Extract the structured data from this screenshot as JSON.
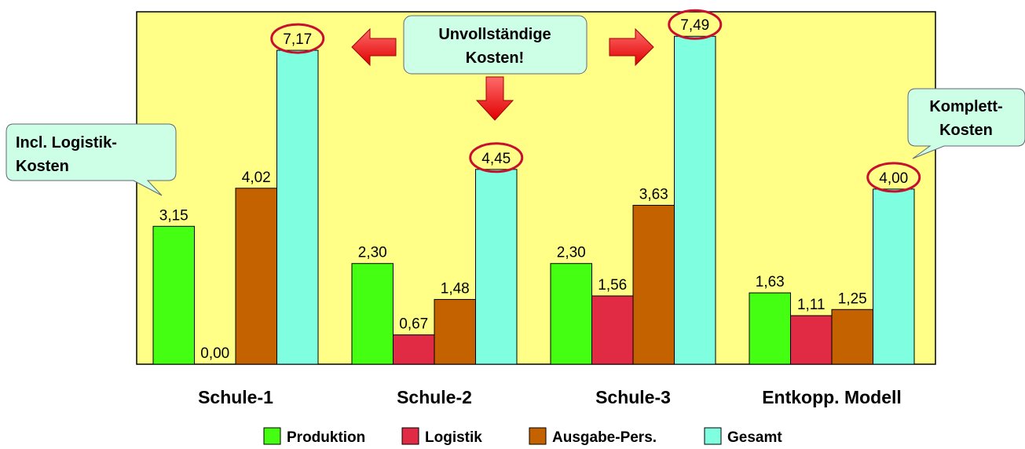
{
  "chart_data": {
    "type": "bar",
    "categories": [
      "Schule-1",
      "Schule-2",
      "Schule-3",
      "Entkopp. Modell"
    ],
    "series": [
      {
        "name": "Produktion",
        "color": "#44ff11",
        "values": [
          3.15,
          2.3,
          2.3,
          1.63
        ],
        "labels": [
          "3,15",
          "2,30",
          "2,30",
          "1,63"
        ]
      },
      {
        "name": "Logistik",
        "color": "#e12b45",
        "values": [
          0.0,
          0.67,
          1.56,
          1.11
        ],
        "labels": [
          "0,00",
          "0,67",
          "1,56",
          "1,11"
        ]
      },
      {
        "name": "Ausgabe-Pers.",
        "color": "#c56200",
        "values": [
          4.02,
          1.48,
          3.63,
          1.25
        ],
        "labels": [
          "4,02",
          "1,48",
          "3,63",
          "1,25"
        ]
      },
      {
        "name": "Gesamt",
        "color": "#7fffdf",
        "values": [
          7.17,
          4.45,
          7.49,
          4.0
        ],
        "labels": [
          "7,17",
          "4,45",
          "7,49",
          "4,00"
        ]
      }
    ],
    "ylim": [
      0,
      8.05
    ],
    "plot_background": "#ffff88",
    "highlight_color": "#c8102e",
    "grid": false,
    "legend_position": "bottom"
  },
  "callouts": {
    "center_line1": "Unvollständige",
    "center_line2": "Kosten!",
    "left_line1": "Incl. Logistik-",
    "left_line2": "Kosten",
    "right_line1": "Komplett-",
    "right_line2": "Kosten"
  },
  "colors": {
    "callout_fill": "#ccffe6",
    "arrow_fill": "#ff0000"
  }
}
